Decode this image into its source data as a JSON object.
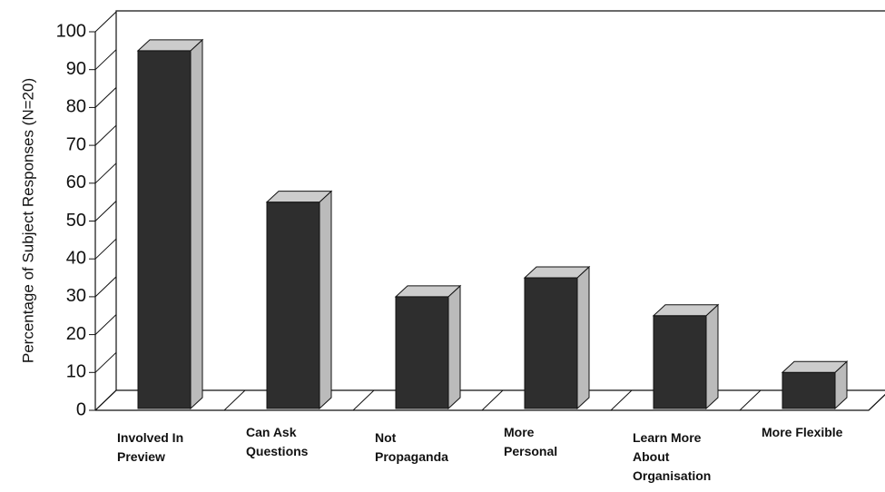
{
  "chart_data": {
    "type": "bar3d",
    "ylabel": "Percentage of Subject Responses (N=20)",
    "categories": [
      "Involved In\nPreview",
      "Can Ask\nQuestions",
      "Not\nPropaganda",
      "More\nPersonal",
      "Learn More\nAbout\nOrganisation",
      "More Flexible"
    ],
    "values": [
      95,
      55,
      30,
      35,
      25,
      10
    ],
    "color": "#2e2e2e",
    "ylim": [
      0,
      100
    ],
    "yticks": [
      0,
      10,
      20,
      30,
      40,
      50,
      60,
      70,
      80,
      90,
      100
    ]
  }
}
